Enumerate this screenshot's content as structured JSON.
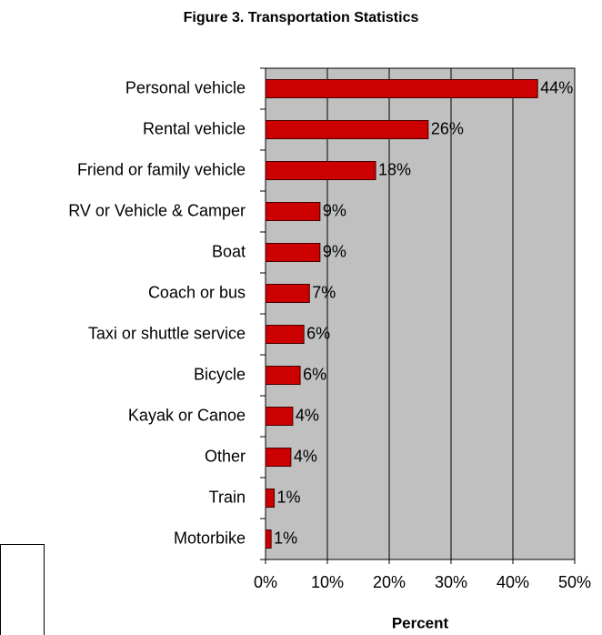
{
  "chart_data": {
    "type": "barh",
    "title": "Figure 3.  Transportation Statistics",
    "x_label": "Percent",
    "categories": [
      "Personal vehicle",
      "Rental vehicle",
      "Friend or family vehicle",
      "RV or Vehicle & Camper",
      "Boat",
      "Coach or bus",
      "Taxi or shuttle service",
      "Bicycle",
      "Kayak or Canoe",
      "Other",
      "Train",
      "Motorbike"
    ],
    "values": [
      44,
      26.3,
      17.8,
      8.8,
      8.8,
      7.1,
      6.2,
      5.6,
      4.4,
      4.1,
      1.4,
      0.9
    ],
    "value_labels": [
      "44%",
      "26%",
      "18%",
      "9%",
      "9%",
      "7%",
      "6%",
      "6%",
      "4%",
      "4%",
      "1%",
      "1%"
    ],
    "color": "#cc0000",
    "xlim": [
      0,
      50
    ],
    "xticks": [
      {
        "value": 0,
        "label": "0%"
      },
      {
        "value": 10,
        "label": "10%"
      },
      {
        "value": 20,
        "label": "20%"
      },
      {
        "value": 30,
        "label": "30%"
      },
      {
        "value": 40,
        "label": "40%"
      },
      {
        "value": 50,
        "label": "50%"
      }
    ],
    "grid": true
  }
}
